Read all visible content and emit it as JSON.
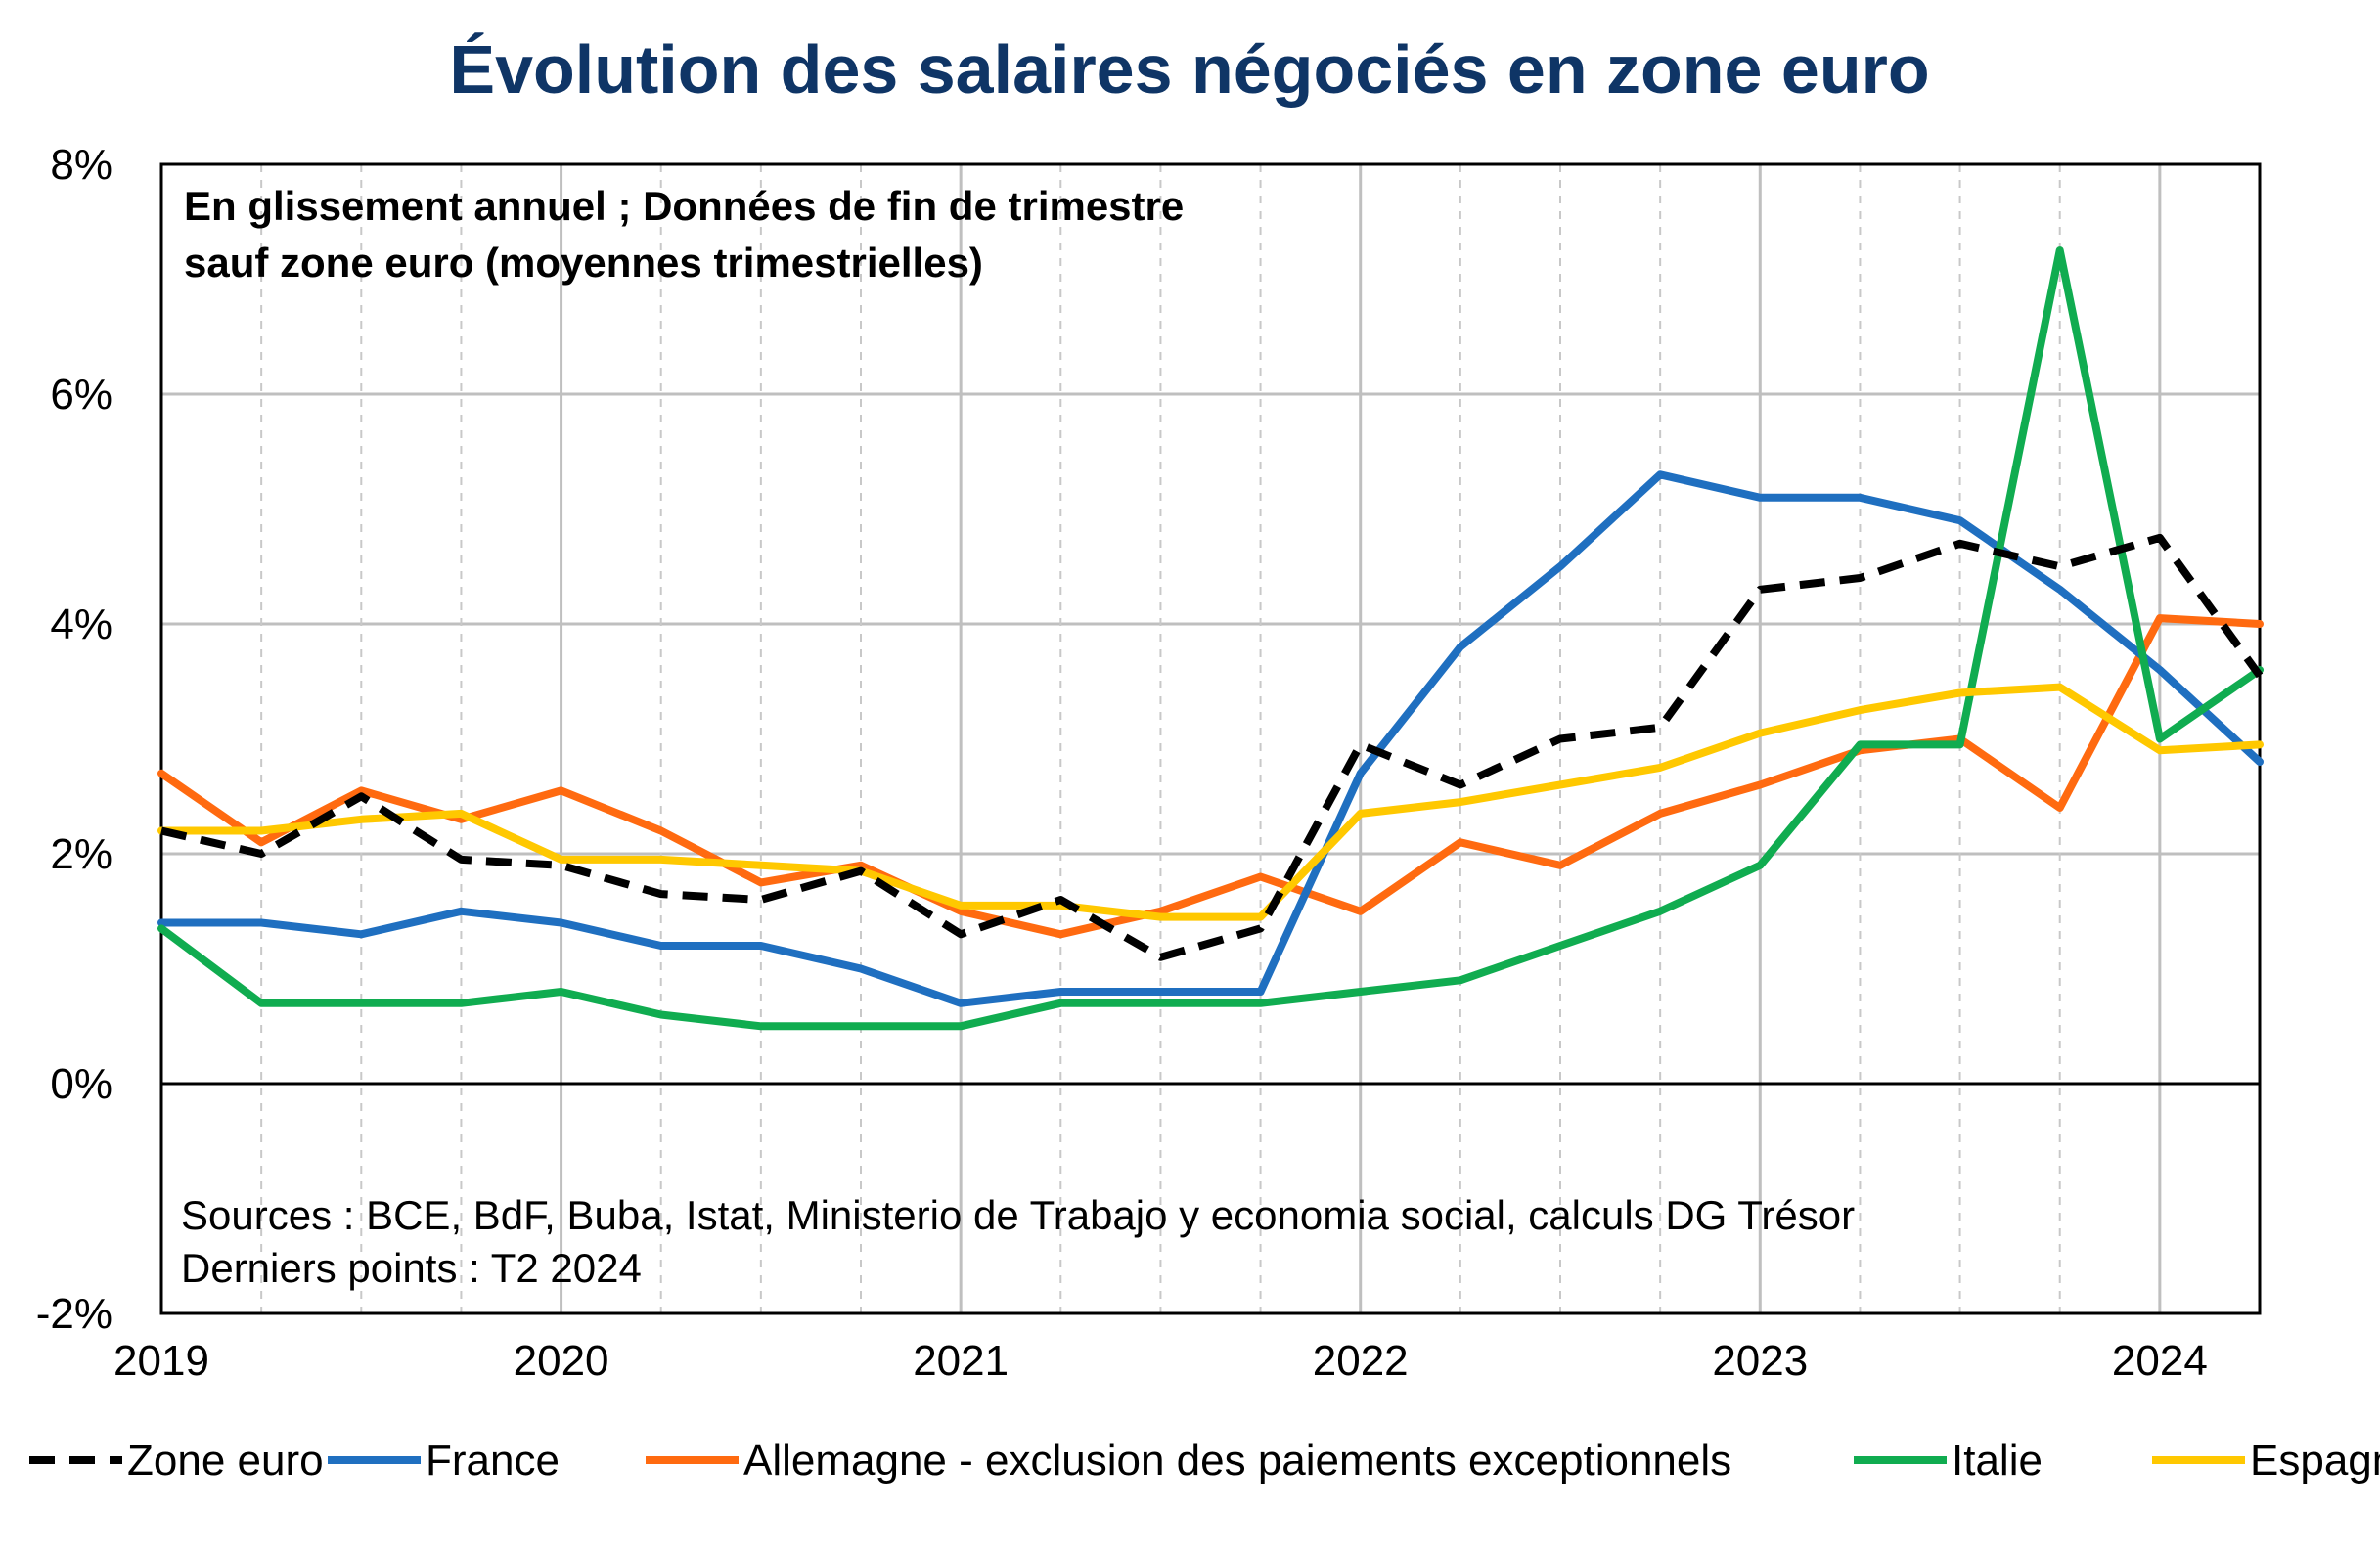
{
  "chart_data": {
    "type": "line",
    "title": "Évolution des salaires négociés en zone euro",
    "notes": [
      "En glissement annuel ; Données de fin de trimestre",
      "sauf zone euro (moyennes trimestrielles)"
    ],
    "sources": [
      "Sources : BCE, BdF, Buba, Istat, Ministerio de Trabajo y economia social, calculs DG Trésor",
      "Derniers points : T2 2024"
    ],
    "x": [
      "2019-T1",
      "2019-T2",
      "2019-T3",
      "2019-T4",
      "2020-T1",
      "2020-T2",
      "2020-T3",
      "2020-T4",
      "2021-T1",
      "2021-T2",
      "2021-T3",
      "2021-T4",
      "2022-T1",
      "2022-T2",
      "2022-T3",
      "2022-T4",
      "2023-T1",
      "2023-T2",
      "2023-T3",
      "2023-T4",
      "2024-T1",
      "2024-T2"
    ],
    "xticks": [
      "2019",
      "2020",
      "2021",
      "2022",
      "2023",
      "2024"
    ],
    "yticks": [
      "8%",
      "6%",
      "4%",
      "2%",
      "0%",
      "-2%"
    ],
    "ylim": [
      -2,
      8
    ],
    "yunit": "%",
    "grid": true,
    "legend_position": "bottom",
    "series": [
      {
        "name": "Zone euro",
        "color": "#000000",
        "dashed": true,
        "values": [
          2.2,
          2.0,
          2.5,
          1.95,
          1.9,
          1.65,
          1.6,
          1.85,
          1.3,
          1.6,
          1.1,
          1.35,
          2.95,
          2.6,
          3.0,
          3.1,
          4.3,
          4.4,
          4.7,
          4.5,
          4.75,
          3.55
        ]
      },
      {
        "name": "France",
        "color": "#1f6fc0",
        "dashed": false,
        "values": [
          1.4,
          1.4,
          1.3,
          1.5,
          1.4,
          1.2,
          1.2,
          1.0,
          0.7,
          0.8,
          0.8,
          0.8,
          2.7,
          3.8,
          4.5,
          5.3,
          5.1,
          5.1,
          4.9,
          4.3,
          3.6,
          2.8
        ]
      },
      {
        "name": "Allemagne - exclusion des paiements exceptionnels",
        "color": "#ff6a10",
        "dashed": false,
        "values": [
          2.7,
          2.1,
          2.55,
          2.3,
          2.55,
          2.2,
          1.75,
          1.9,
          1.5,
          1.3,
          1.5,
          1.8,
          1.5,
          2.1,
          1.9,
          2.35,
          2.6,
          2.9,
          3.0,
          2.4,
          4.05,
          4.0
        ]
      },
      {
        "name": "Italie",
        "color": "#10ac50",
        "dashed": false,
        "values": [
          1.35,
          0.7,
          0.7,
          0.7,
          0.8,
          0.6,
          0.5,
          0.5,
          0.5,
          0.7,
          0.7,
          0.7,
          0.8,
          0.9,
          1.2,
          1.5,
          1.9,
          2.95,
          2.95,
          7.25,
          3.0,
          3.6
        ]
      },
      {
        "name": "Espagne",
        "color": "#ffc800",
        "dashed": false,
        "values": [
          2.2,
          2.2,
          2.3,
          2.35,
          1.95,
          1.95,
          1.9,
          1.85,
          1.55,
          1.55,
          1.45,
          1.45,
          2.35,
          2.45,
          2.6,
          2.75,
          3.05,
          3.25,
          3.4,
          3.45,
          2.9,
          2.95
        ]
      }
    ]
  }
}
